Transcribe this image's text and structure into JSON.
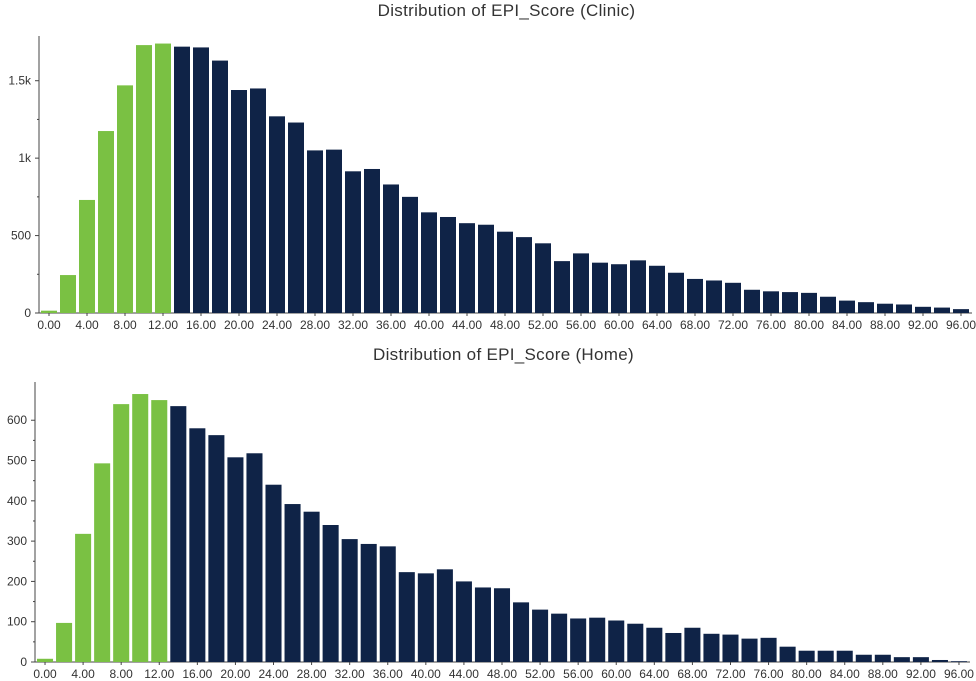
{
  "colors": {
    "low": "#7ac143",
    "high": "#0f2347",
    "axis": "#444444",
    "text": "#333333"
  },
  "chart_data": [
    {
      "type": "bar",
      "title": "Distribution of EPI_Score (Clinic)",
      "x_tick_labels": [
        "0.00",
        "4.00",
        "8.00",
        "12.00",
        "16.00",
        "20.00",
        "24.00",
        "28.00",
        "32.00",
        "36.00",
        "40.00",
        "44.00",
        "48.00",
        "52.00",
        "56.00",
        "60.00",
        "64.00",
        "68.00",
        "72.00",
        "76.00",
        "80.00",
        "84.00",
        "88.00",
        "92.00",
        "96.00"
      ],
      "y_tick_labels": [
        "0",
        "500",
        "1k",
        "1.5k"
      ],
      "y_ticks": [
        0,
        500,
        1000,
        1500
      ],
      "ylim": [
        0,
        1750
      ],
      "bin_width": 2,
      "highlight_below": 14,
      "bin_start": [
        0,
        2,
        4,
        6,
        8,
        10,
        12,
        14,
        16,
        18,
        20,
        22,
        24,
        26,
        28,
        30,
        32,
        34,
        36,
        38,
        40,
        42,
        44,
        46,
        48,
        50,
        52,
        54,
        56,
        58,
        60,
        62,
        64,
        66,
        68,
        70,
        72,
        74,
        76,
        78,
        80,
        82,
        84,
        86,
        88,
        90,
        92,
        94,
        96
      ],
      "values": [
        15,
        245,
        730,
        1175,
        1470,
        1730,
        1740,
        1720,
        1715,
        1630,
        1440,
        1450,
        1270,
        1230,
        1050,
        1055,
        915,
        930,
        830,
        750,
        650,
        620,
        580,
        570,
        525,
        490,
        450,
        335,
        385,
        325,
        315,
        340,
        305,
        260,
        220,
        210,
        195,
        150,
        140,
        135,
        130,
        105,
        80,
        70,
        60,
        55,
        40,
        35,
        25
      ]
    },
    {
      "type": "bar",
      "title": "Distribution of EPI_Score (Home)",
      "x_tick_labels": [
        "0.00",
        "4.00",
        "8.00",
        "12.00",
        "16.00",
        "20.00",
        "24.00",
        "28.00",
        "32.00",
        "36.00",
        "40.00",
        "44.00",
        "48.00",
        "52.00",
        "56.00",
        "60.00",
        "64.00",
        "68.00",
        "72.00",
        "76.00",
        "80.00",
        "84.00",
        "88.00",
        "92.00",
        "96.00"
      ],
      "y_tick_labels": [
        "0",
        "100",
        "200",
        "300",
        "400",
        "500",
        "600"
      ],
      "y_ticks": [
        0,
        100,
        200,
        300,
        400,
        500,
        600
      ],
      "ylim": [
        0,
        680
      ],
      "bin_width": 2,
      "highlight_below": 14,
      "bin_start": [
        0,
        2,
        4,
        6,
        8,
        10,
        12,
        14,
        16,
        18,
        20,
        22,
        24,
        26,
        28,
        30,
        32,
        34,
        36,
        38,
        40,
        42,
        44,
        46,
        48,
        50,
        52,
        54,
        56,
        58,
        60,
        62,
        64,
        66,
        68,
        70,
        72,
        74,
        76,
        78,
        80,
        82,
        84,
        86,
        88,
        90,
        92,
        94,
        96
      ],
      "values": [
        8,
        97,
        318,
        493,
        640,
        665,
        650,
        635,
        580,
        563,
        508,
        518,
        440,
        392,
        373,
        340,
        305,
        293,
        287,
        223,
        220,
        230,
        200,
        185,
        183,
        148,
        130,
        120,
        108,
        110,
        103,
        95,
        85,
        72,
        85,
        70,
        68,
        58,
        60,
        38,
        28,
        28,
        28,
        18,
        18,
        12,
        12,
        5,
        2
      ]
    }
  ]
}
